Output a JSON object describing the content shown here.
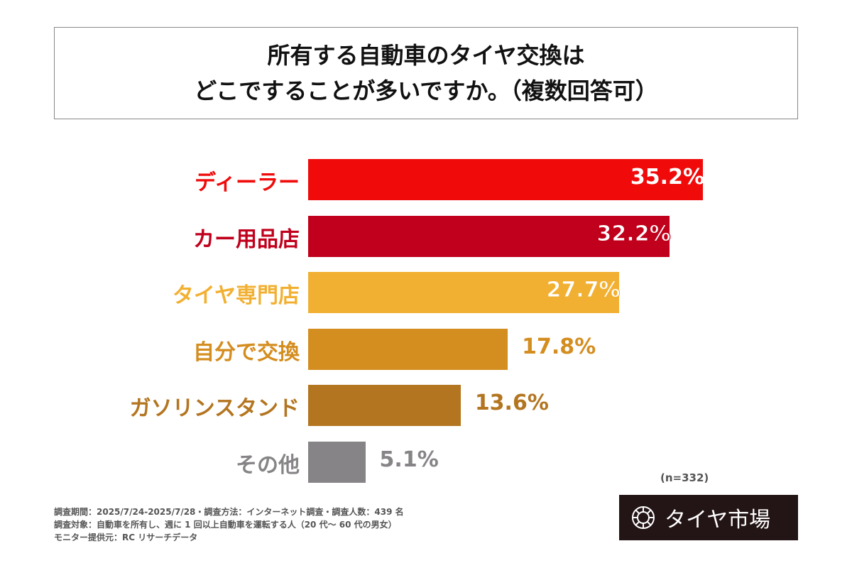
{
  "chart_data": {
    "type": "bar",
    "orientation": "horizontal",
    "title": [
      "所有する自動車のタイヤ交換は",
      "どこですることが多いですか。（複数回答可）"
    ],
    "categories": [
      "ディーラー",
      "カー用品店",
      "タイヤ専門店",
      "自分で交換",
      "ガソリンスタンド",
      "その他"
    ],
    "values": [
      35.2,
      32.2,
      27.7,
      17.8,
      13.6,
      5.1
    ],
    "value_labels": [
      "35.2%",
      "32.2%",
      "27.7%",
      "17.8%",
      "13.6%",
      "5.1%"
    ],
    "colors": [
      "#f00a0a",
      "#c0001c",
      "#f2b033",
      "#d48d1f",
      "#b37520",
      "#878487"
    ],
    "unit": "%",
    "xlim": [
      0,
      35.2
    ]
  },
  "note_n": "(n=332)",
  "footer": [
    "調査期間：2025/7/24-2025/7/28・調査方法：インターネット調査・調査人数：439 名",
    "調査対象：自動車を所有し、週に 1 回以上自動車を運転する人（20 代～ 60 代の男女）",
    "モニター提供元：RC リサーチデータ"
  ],
  "logo": {
    "text": "タイヤ市場",
    "icon": "tire-icon"
  }
}
